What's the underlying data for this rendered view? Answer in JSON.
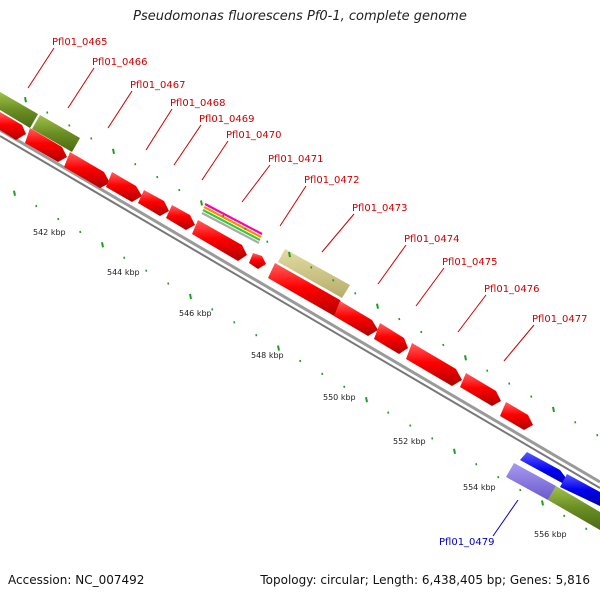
{
  "title": "Pseudomonas fluorescens Pf0-1, complete genome",
  "footer": {
    "accession": "Accession: NC_007492",
    "summary": "Topology: circular; Length: 6,438,405 bp; Genes: 5,816"
  },
  "colors": {
    "forward_cds": "#ff0000",
    "reverse_cds": "#0000ee",
    "gene_track": "#6b8e23",
    "tick": "#1e9e1e",
    "backbone": "#8a8a8a",
    "forward_label": "#cc0000",
    "reverse_label": "#0000cc"
  },
  "gene_labels": {
    "forward": [
      "Pfl01_0465",
      "Pfl01_0466",
      "Pfl01_0467",
      "Pfl01_0468",
      "Pfl01_0469",
      "Pfl01_0470",
      "Pfl01_0471",
      "Pfl01_0472",
      "Pfl01_0473",
      "Pfl01_0474",
      "Pfl01_0475",
      "Pfl01_0476",
      "Pfl01_0477"
    ],
    "reverse": [
      "Pfl01_0479"
    ]
  },
  "kbp_labels": [
    "542 kbp",
    "544 kbp",
    "546 kbp",
    "548 kbp",
    "550 kbp",
    "552 kbp",
    "554 kbp",
    "556 kbp"
  ]
}
